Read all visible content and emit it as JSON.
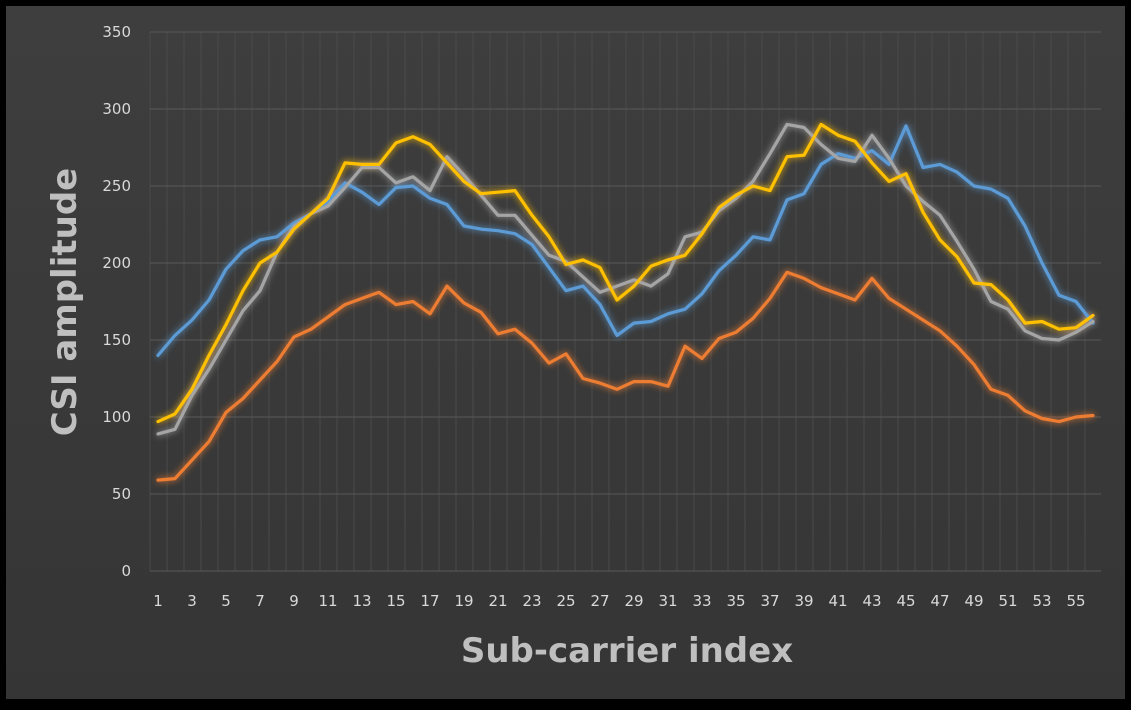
{
  "chart_data": {
    "type": "line",
    "title": "",
    "xlabel": "Sub-carrier index",
    "ylabel": "CSI amplitude",
    "x": [
      1,
      2,
      3,
      4,
      5,
      6,
      7,
      8,
      9,
      10,
      11,
      12,
      13,
      14,
      15,
      16,
      17,
      18,
      19,
      20,
      21,
      22,
      23,
      24,
      25,
      26,
      27,
      28,
      29,
      30,
      31,
      32,
      33,
      34,
      35,
      36,
      37,
      38,
      39,
      40,
      41,
      42,
      43,
      44,
      45,
      46,
      47,
      48,
      49,
      50,
      51,
      52,
      53,
      54,
      55,
      56
    ],
    "xtick_labels": [
      "1",
      "3",
      "5",
      "7",
      "9",
      "11",
      "13",
      "15",
      "17",
      "19",
      "21",
      "23",
      "25",
      "27",
      "29",
      "31",
      "33",
      "35",
      "37",
      "39",
      "41",
      "43",
      "45",
      "47",
      "49",
      "51",
      "53",
      "55"
    ],
    "yticks": [
      0,
      50,
      100,
      150,
      200,
      250,
      300,
      350
    ],
    "ylim": [
      0,
      350
    ],
    "grid": true,
    "legend": "none",
    "series": [
      {
        "color": "#5b9bd5",
        "values": [
          140,
          153,
          163,
          176,
          196,
          208,
          215,
          217,
          226,
          232,
          240,
          252,
          246,
          238,
          249,
          250,
          242,
          238,
          224,
          222,
          221,
          219,
          212,
          197,
          182,
          185,
          173,
          153,
          161,
          162,
          167,
          170,
          180,
          195,
          205,
          217,
          215,
          241,
          245,
          264,
          271,
          268,
          273,
          264,
          289,
          262,
          264,
          259,
          250,
          248,
          242,
          224,
          200,
          179,
          175,
          161
        ]
      },
      {
        "color": "#ed7d31",
        "values": [
          59,
          60,
          72,
          84,
          103,
          112,
          124,
          136,
          152,
          157,
          165,
          173,
          177,
          181,
          173,
          175,
          167,
          185,
          174,
          168,
          154,
          157,
          148,
          135,
          141,
          125,
          122,
          118,
          123,
          123,
          120,
          146,
          138,
          151,
          155,
          164,
          177,
          194,
          190,
          184,
          180,
          176,
          190,
          177,
          170,
          163,
          156,
          146,
          134,
          118,
          114,
          104,
          99,
          97,
          100,
          101
        ]
      },
      {
        "color": "#a5a5a5",
        "values": [
          89,
          92,
          114,
          131,
          150,
          169,
          182,
          207,
          224,
          232,
          237,
          249,
          262,
          262,
          252,
          256,
          247,
          269,
          257,
          244,
          231,
          231,
          218,
          205,
          201,
          191,
          181,
          185,
          189,
          185,
          193,
          217,
          220,
          234,
          242,
          253,
          271,
          290,
          288,
          277,
          268,
          266,
          283,
          268,
          250,
          240,
          231,
          214,
          196,
          175,
          170,
          156,
          151,
          150,
          155,
          162
        ]
      },
      {
        "color": "#ffc000",
        "values": [
          97,
          102,
          118,
          140,
          160,
          182,
          200,
          207,
          222,
          232,
          242,
          265,
          264,
          264,
          278,
          282,
          277,
          265,
          253,
          245,
          246,
          247,
          231,
          217,
          199,
          202,
          197,
          176,
          185,
          198,
          202,
          205,
          219,
          236,
          244,
          250,
          247,
          269,
          270,
          290,
          283,
          279,
          265,
          253,
          258,
          233,
          215,
          204,
          187,
          186,
          176,
          161,
          162,
          157,
          158,
          166
        ]
      }
    ]
  }
}
